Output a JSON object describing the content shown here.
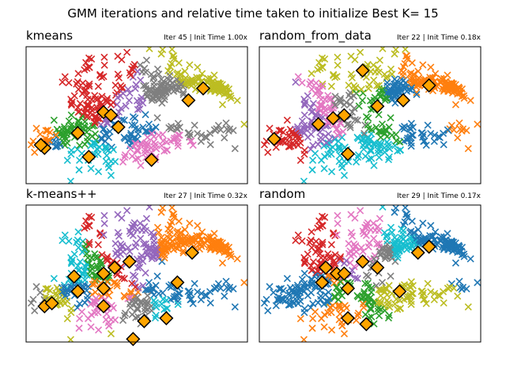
{
  "figure": {
    "title": "GMM iterations and relative time taken to initialize Best K= 15"
  },
  "palette": [
    "#1f77b4",
    "#ff7f0e",
    "#2ca02c",
    "#d62728",
    "#9467bd",
    "#e377c2",
    "#7f7f7f",
    "#bcbd22",
    "#17becf"
  ],
  "center_style": {
    "fill": "#ffa500",
    "stroke": "#000000"
  },
  "chart_data": [
    {
      "type": "scatter",
      "title": "kmeans",
      "note": "Iter 45 | Init Time 1.00x",
      "grid": false,
      "centers": [
        [
          1.0,
          -1.6
        ],
        [
          0.9,
          -1.5
        ],
        [
          1.9,
          -1.1
        ],
        [
          2.6,
          -0.4
        ],
        [
          2.8,
          -0.5
        ],
        [
          3.9,
          -2.0
        ],
        [
          4.9,
          0.0
        ],
        [
          5.3,
          0.4
        ],
        [
          2.2,
          -1.9
        ],
        [
          3.0,
          -0.9
        ]
      ]
    },
    {
      "type": "scatter",
      "title": "random_from_data",
      "note": "Iter 22 | Init Time 0.18x",
      "grid": false,
      "centers": [
        [
          0.9,
          -1.3
        ],
        [
          2.1,
          -0.8
        ],
        [
          2.5,
          -0.6
        ],
        [
          2.8,
          -0.5
        ],
        [
          3.3,
          1.0
        ],
        [
          2.9,
          -1.8
        ],
        [
          4.4,
          0.0
        ],
        [
          5.1,
          0.5
        ],
        [
          3.7,
          -0.2
        ]
      ]
    },
    {
      "type": "scatter",
      "title": "k-means++",
      "note": "Iter 27 | Init Time 0.32x",
      "grid": false,
      "centers": [
        [
          1.0,
          -1.6
        ],
        [
          1.2,
          -1.5
        ],
        [
          1.8,
          -0.6
        ],
        [
          1.9,
          -1.1
        ],
        [
          2.6,
          -1.0
        ],
        [
          2.6,
          -0.5
        ],
        [
          2.9,
          -0.3
        ],
        [
          3.3,
          -0.1
        ],
        [
          2.6,
          -1.6
        ],
        [
          3.7,
          -2.1
        ],
        [
          3.4,
          -2.7
        ],
        [
          4.3,
          -2.0
        ],
        [
          4.6,
          -0.8
        ],
        [
          5.0,
          0.2
        ]
      ]
    },
    {
      "type": "scatter",
      "title": "random",
      "note": "Iter 29 | Init Time 0.17x",
      "grid": false,
      "centers": [
        [
          2.2,
          -0.8
        ],
        [
          2.6,
          -0.5
        ],
        [
          2.9,
          -1.0
        ],
        [
          2.3,
          -0.3
        ],
        [
          2.8,
          -0.5
        ],
        [
          3.3,
          -0.1
        ],
        [
          3.7,
          -0.3
        ],
        [
          4.3,
          -1.1
        ],
        [
          4.8,
          0.2
        ],
        [
          5.1,
          0.4
        ],
        [
          2.9,
          -2.0
        ],
        [
          3.4,
          -2.2
        ]
      ]
    }
  ]
}
